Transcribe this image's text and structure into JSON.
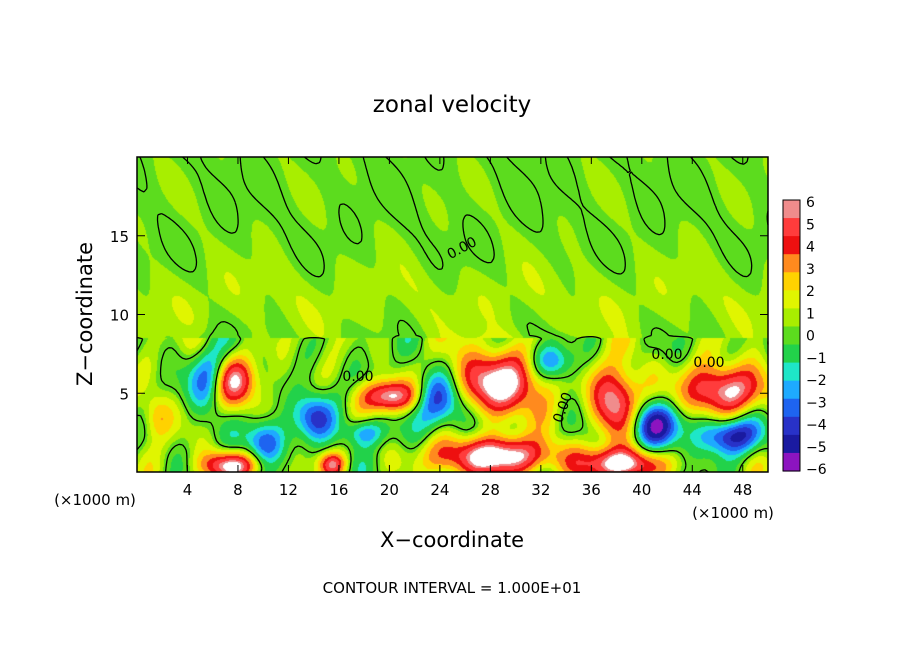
{
  "chart_data": {
    "type": "heatmap",
    "title": "zonal velocity",
    "xlabel": "X−coordinate",
    "ylabel": "Z−coordinate",
    "x_unit_left": "(×1000 m)",
    "x_unit_right": "(×1000 m)",
    "footer": "CONTOUR INTERVAL = 1.000E+01",
    "xlim": [
      0,
      50
    ],
    "ylim": [
      0,
      20
    ],
    "x_ticks": [
      4,
      8,
      12,
      16,
      20,
      24,
      28,
      32,
      36,
      40,
      44,
      48
    ],
    "y_ticks": [
      5,
      10,
      15
    ],
    "contour_labels": [
      "0.00",
      "0.00",
      "0.00",
      "0.00",
      "0.00"
    ],
    "colorbar": {
      "min": -6,
      "max": 6,
      "labels": [
        "6",
        "5",
        "4",
        "3",
        "2",
        "1",
        "0",
        "−1",
        "−2",
        "−3",
        "−4",
        "−5",
        "−6"
      ],
      "colors": [
        "#f08c8c",
        "#ff3c3c",
        "#ee1010",
        "#ff8a1e",
        "#ffd200",
        "#e0f500",
        "#a8ee00",
        "#5cdc1e",
        "#22d24a",
        "#1ee6c8",
        "#1eaaff",
        "#1e64f0",
        "#2832c8",
        "#1a1aa0",
        "#8c14c0"
      ]
    },
    "features": [
      {
        "type": "blob",
        "x": 6.0,
        "z": 6.0,
        "rx": 1.6,
        "rz": 1.8,
        "value": -5.5
      },
      {
        "type": "blob",
        "x": 10.0,
        "z": 2.0,
        "rx": 1.5,
        "rz": 1.4,
        "value": -4.5
      },
      {
        "type": "blob",
        "x": 7.5,
        "z": 5.8,
        "rx": 2.0,
        "rz": 1.6,
        "value": 6.5
      },
      {
        "type": "blob",
        "x": 20.0,
        "z": 4.8,
        "rx": 2.2,
        "rz": 1.0,
        "value": 6.5
      },
      {
        "type": "blob",
        "x": 24.0,
        "z": 4.5,
        "rx": 2.5,
        "rz": 1.8,
        "value": -4.5
      },
      {
        "type": "blob",
        "x": 28.5,
        "z": 5.6,
        "rx": 3.6,
        "rz": 2.0,
        "value": 7.0
      },
      {
        "type": "blob",
        "x": 33.0,
        "z": 7.0,
        "rx": 1.8,
        "rz": 1.2,
        "value": -3.5
      },
      {
        "type": "blob",
        "x": 38.0,
        "z": 4.5,
        "rx": 1.8,
        "rz": 2.2,
        "value": 7.0
      },
      {
        "type": "blob",
        "x": 41.0,
        "z": 3.0,
        "rx": 2.2,
        "rz": 1.5,
        "value": -5.5
      },
      {
        "type": "blob",
        "x": 46.5,
        "z": 5.2,
        "rx": 3.2,
        "rz": 1.6,
        "value": 6.5
      },
      {
        "type": "blob",
        "x": 47.0,
        "z": 2.3,
        "rx": 2.3,
        "rz": 1.2,
        "value": -5.5
      },
      {
        "type": "blob",
        "x": 28.5,
        "z": 1.0,
        "rx": 5.0,
        "rz": 1.2,
        "value": 7.0
      },
      {
        "type": "blob",
        "x": 38.5,
        "z": 0.5,
        "rx": 3.0,
        "rz": 1.0,
        "value": 7.0
      },
      {
        "type": "blob",
        "x": 7.5,
        "z": 0.4,
        "rx": 2.2,
        "rz": 0.9,
        "value": 6.5
      },
      {
        "type": "blob",
        "x": 14.0,
        "z": 3.5,
        "rx": 1.5,
        "rz": 1.5,
        "value": -4.0
      },
      {
        "type": "blob",
        "x": 18.0,
        "z": 2.5,
        "rx": 1.6,
        "rz": 0.9,
        "value": -3.5
      },
      {
        "type": "blob",
        "x": 15.5,
        "z": 0.5,
        "rx": 1.0,
        "rz": 0.7,
        "value": 4.5
      },
      {
        "type": "blob",
        "x": 1.5,
        "z": 3.5,
        "rx": 1.2,
        "rz": 1.5,
        "value": 3.0
      }
    ]
  }
}
